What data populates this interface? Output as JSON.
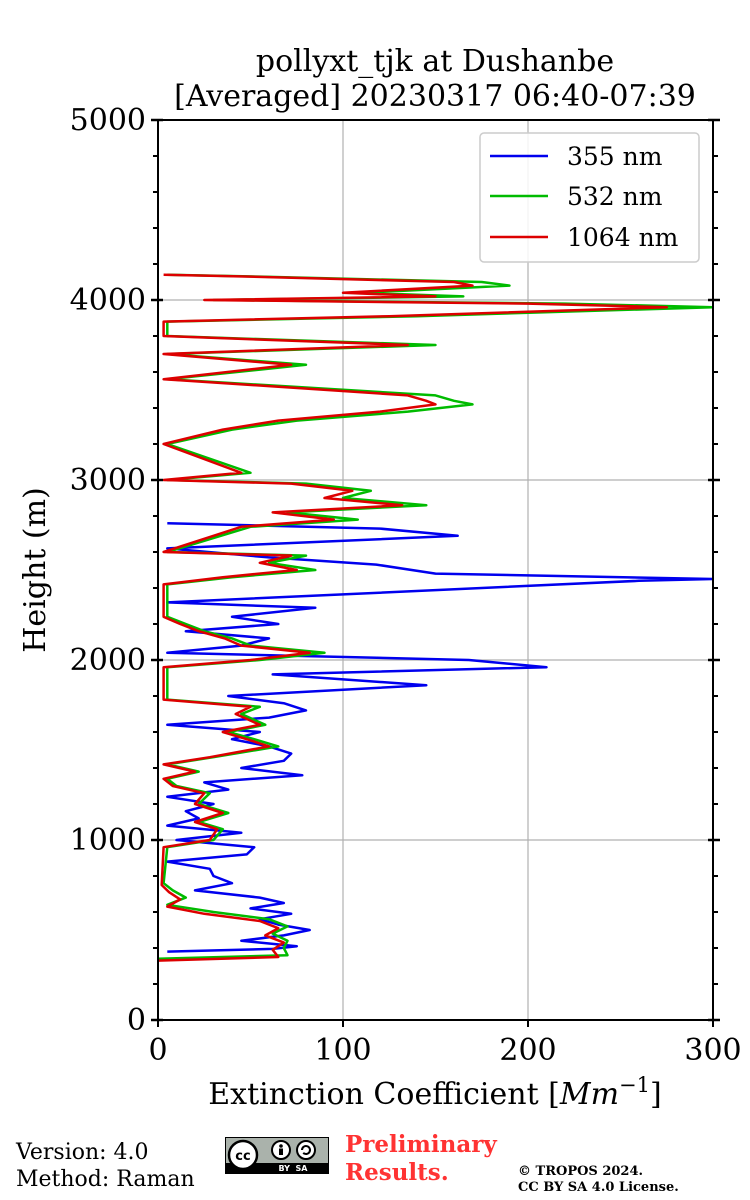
{
  "chart_data": {
    "type": "line",
    "title_line1": "pollyxt_tjk at Dushanbe",
    "title_line2": "[Averaged] 20230317 06:40-07:39",
    "xlabel_prefix": "Extinction Coefficient [",
    "xlabel_unit": "Mm",
    "xlabel_exp": "−1",
    "xlabel_suffix": "]",
    "ylabel": "Height (m)",
    "xlim": [
      0,
      300
    ],
    "ylim": [
      0,
      5000
    ],
    "xticks": [
      0,
      100,
      200,
      300
    ],
    "yticks": [
      0,
      1000,
      2000,
      3000,
      4000,
      5000
    ],
    "xtick_labels": [
      "0",
      "100",
      "200",
      "300"
    ],
    "ytick_labels": [
      "0",
      "1000",
      "2000",
      "3000",
      "4000",
      "5000"
    ],
    "grid": true,
    "legend_position": "top-right",
    "series": [
      {
        "name": "355 nm",
        "color": "#0000ee",
        "points": [
          [
            5,
            380
          ],
          [
            62,
            395
          ],
          [
            75,
            410
          ],
          [
            45,
            440
          ],
          [
            68,
            470
          ],
          [
            82,
            500
          ],
          [
            65,
            530
          ],
          [
            55,
            560
          ],
          [
            72,
            590
          ],
          [
            50,
            620
          ],
          [
            68,
            650
          ],
          [
            55,
            680
          ],
          [
            20,
            720
          ],
          [
            40,
            760
          ],
          [
            30,
            800
          ],
          [
            28,
            840
          ],
          [
            5,
            880
          ],
          [
            48,
            920
          ],
          [
            52,
            960
          ],
          [
            10,
            1000
          ],
          [
            45,
            1040
          ],
          [
            5,
            1080
          ],
          [
            22,
            1120
          ],
          [
            15,
            1160
          ],
          [
            30,
            1200
          ],
          [
            5,
            1240
          ],
          [
            38,
            1280
          ],
          [
            25,
            1320
          ],
          [
            78,
            1360
          ],
          [
            45,
            1400
          ],
          [
            68,
            1440
          ],
          [
            72,
            1480
          ],
          [
            60,
            1520
          ],
          [
            40,
            1560
          ],
          [
            55,
            1600
          ],
          [
            5,
            1640
          ],
          [
            60,
            1680
          ],
          [
            80,
            1720
          ],
          [
            68,
            1760
          ],
          [
            38,
            1800
          ],
          [
            145,
            1860
          ],
          [
            62,
            1920
          ],
          [
            210,
            1960
          ],
          [
            168,
            2000
          ],
          [
            5,
            2040
          ],
          [
            45,
            2080
          ],
          [
            60,
            2120
          ],
          [
            15,
            2160
          ],
          [
            65,
            2200
          ],
          [
            40,
            2240
          ],
          [
            85,
            2290
          ],
          [
            5,
            2320
          ],
          [
            260,
            2440
          ],
          [
            300,
            2450
          ],
          [
            150,
            2480
          ],
          [
            118,
            2530
          ],
          [
            60,
            2570
          ],
          [
            5,
            2620
          ],
          [
            162,
            2690
          ],
          [
            120,
            2730
          ],
          [
            5,
            2760
          ]
        ]
      },
      {
        "name": "532 nm",
        "color": "#00bb00",
        "points": [
          [
            0,
            340
          ],
          [
            70,
            360
          ],
          [
            68,
            400
          ],
          [
            70,
            440
          ],
          [
            62,
            480
          ],
          [
            70,
            520
          ],
          [
            60,
            560
          ],
          [
            30,
            600
          ],
          [
            5,
            640
          ],
          [
            15,
            680
          ],
          [
            8,
            720
          ],
          [
            3,
            760
          ],
          [
            5,
            960
          ],
          [
            30,
            1000
          ],
          [
            35,
            1060
          ],
          [
            22,
            1100
          ],
          [
            38,
            1150
          ],
          [
            22,
            1200
          ],
          [
            28,
            1260
          ],
          [
            10,
            1300
          ],
          [
            5,
            1340
          ],
          [
            22,
            1380
          ],
          [
            5,
            1420
          ],
          [
            30,
            1460
          ],
          [
            65,
            1520
          ],
          [
            52,
            1560
          ],
          [
            38,
            1600
          ],
          [
            58,
            1640
          ],
          [
            45,
            1700
          ],
          [
            55,
            1740
          ],
          [
            5,
            1780
          ],
          [
            5,
            1840
          ],
          [
            5,
            1960
          ],
          [
            55,
            2000
          ],
          [
            90,
            2040
          ],
          [
            50,
            2080
          ],
          [
            40,
            2120
          ],
          [
            25,
            2160
          ],
          [
            15,
            2200
          ],
          [
            5,
            2240
          ],
          [
            5,
            2420
          ],
          [
            40,
            2460
          ],
          [
            85,
            2500
          ],
          [
            60,
            2540
          ],
          [
            80,
            2580
          ],
          [
            5,
            2600
          ],
          [
            50,
            2740
          ],
          [
            108,
            2780
          ],
          [
            70,
            2820
          ],
          [
            145,
            2860
          ],
          [
            100,
            2900
          ],
          [
            115,
            2940
          ],
          [
            80,
            2980
          ],
          [
            5,
            3000
          ],
          [
            50,
            3040
          ],
          [
            5,
            3200
          ],
          [
            40,
            3280
          ],
          [
            75,
            3330
          ],
          [
            135,
            3380
          ],
          [
            170,
            3420
          ],
          [
            160,
            3440
          ],
          [
            150,
            3470
          ],
          [
            70,
            3520
          ],
          [
            5,
            3560
          ],
          [
            80,
            3640
          ],
          [
            5,
            3700
          ],
          [
            150,
            3750
          ],
          [
            5,
            3800
          ],
          [
            5,
            3880
          ],
          [
            140,
            3910
          ],
          [
            300,
            3960
          ],
          [
            220,
            3980
          ],
          [
            30,
            4000
          ],
          [
            165,
            4020
          ],
          [
            110,
            4040
          ],
          [
            190,
            4080
          ],
          [
            175,
            4100
          ],
          [
            55,
            4130
          ],
          [
            5,
            4140
          ]
        ]
      },
      {
        "name": "1064 nm",
        "color": "#dd0000",
        "points": [
          [
            0,
            330
          ],
          [
            65,
            350
          ],
          [
            62,
            390
          ],
          [
            68,
            430
          ],
          [
            58,
            470
          ],
          [
            65,
            510
          ],
          [
            55,
            550
          ],
          [
            25,
            590
          ],
          [
            5,
            630
          ],
          [
            12,
            670
          ],
          [
            6,
            710
          ],
          [
            2,
            750
          ],
          [
            3,
            960
          ],
          [
            28,
            1000
          ],
          [
            32,
            1060
          ],
          [
            20,
            1100
          ],
          [
            35,
            1150
          ],
          [
            20,
            1200
          ],
          [
            25,
            1260
          ],
          [
            8,
            1300
          ],
          [
            3,
            1340
          ],
          [
            20,
            1380
          ],
          [
            3,
            1420
          ],
          [
            28,
            1460
          ],
          [
            60,
            1520
          ],
          [
            48,
            1560
          ],
          [
            35,
            1600
          ],
          [
            55,
            1640
          ],
          [
            42,
            1700
          ],
          [
            50,
            1740
          ],
          [
            3,
            1780
          ],
          [
            3,
            1840
          ],
          [
            3,
            1960
          ],
          [
            50,
            2000
          ],
          [
            82,
            2040
          ],
          [
            45,
            2080
          ],
          [
            36,
            2120
          ],
          [
            22,
            2160
          ],
          [
            12,
            2200
          ],
          [
            3,
            2240
          ],
          [
            3,
            2420
          ],
          [
            35,
            2460
          ],
          [
            75,
            2500
          ],
          [
            55,
            2540
          ],
          [
            72,
            2580
          ],
          [
            3,
            2600
          ],
          [
            45,
            2740
          ],
          [
            95,
            2780
          ],
          [
            62,
            2820
          ],
          [
            132,
            2860
          ],
          [
            90,
            2900
          ],
          [
            105,
            2940
          ],
          [
            72,
            2980
          ],
          [
            3,
            3000
          ],
          [
            45,
            3040
          ],
          [
            3,
            3200
          ],
          [
            35,
            3280
          ],
          [
            65,
            3330
          ],
          [
            120,
            3380
          ],
          [
            150,
            3420
          ],
          [
            145,
            3440
          ],
          [
            135,
            3470
          ],
          [
            62,
            3520
          ],
          [
            3,
            3560
          ],
          [
            72,
            3640
          ],
          [
            3,
            3700
          ],
          [
            135,
            3750
          ],
          [
            3,
            3800
          ],
          [
            3,
            3880
          ],
          [
            125,
            3910
          ],
          [
            275,
            3960
          ],
          [
            200,
            3980
          ],
          [
            25,
            4000
          ],
          [
            150,
            4020
          ],
          [
            100,
            4040
          ],
          [
            170,
            4080
          ],
          [
            160,
            4100
          ],
          [
            50,
            4130
          ],
          [
            3,
            4140
          ]
        ]
      }
    ]
  },
  "footer": {
    "version": "Version: 4.0",
    "method": "Method: Raman",
    "preliminary_line1": "Preliminary",
    "preliminary_line2": "Results.",
    "copyright_line1": "© TROPOS 2024.",
    "copyright_line2": "CC BY SA 4.0 License.",
    "cc_badge_text": "BY  SA",
    "cc_badge_logo": "cc"
  }
}
